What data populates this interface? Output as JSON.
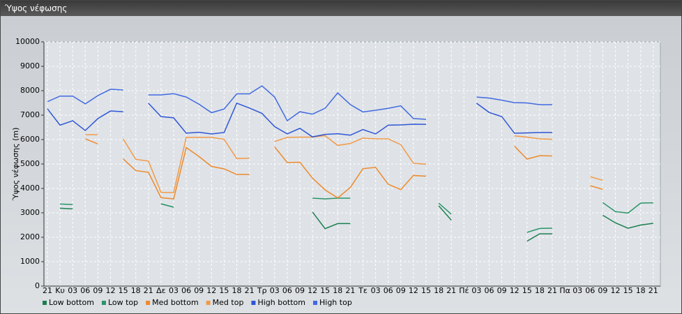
{
  "window": {
    "title": "Ύψος νέφωσης"
  },
  "chart_data": {
    "type": "line",
    "y_label": "Ύψος νέφωσης (m)",
    "categories": [
      "21",
      "Κυ",
      "03",
      "06",
      "09",
      "12",
      "15",
      "18",
      "21",
      "Δε",
      "03",
      "06",
      "09",
      "12",
      "15",
      "18",
      "21",
      "Τρ",
      "03",
      "06",
      "09",
      "12",
      "15",
      "18",
      "21",
      "Τε",
      "03",
      "06",
      "09",
      "12",
      "15",
      "18",
      "21",
      "Πέ",
      "03",
      "06",
      "09",
      "12",
      "15",
      "18",
      "21",
      "Πα",
      "03",
      "06",
      "09",
      "12",
      "15",
      "18",
      "21"
    ],
    "ylim": [
      0,
      10000
    ],
    "yticks": [
      0,
      1000,
      2000,
      3000,
      4000,
      5000,
      6000,
      7000,
      8000,
      9000,
      10000
    ],
    "grid": true,
    "series": [
      {
        "name": "Low bottom",
        "color": "#1b7f4f",
        "values": [
          null,
          3190,
          3160,
          null,
          null,
          null,
          null,
          null,
          null,
          3370,
          3230,
          null,
          null,
          null,
          null,
          null,
          null,
          null,
          null,
          null,
          null,
          3030,
          2350,
          2560,
          2560,
          null,
          null,
          null,
          null,
          null,
          null,
          3290,
          2700,
          null,
          null,
          null,
          null,
          null,
          1840,
          2140,
          2140,
          null,
          null,
          null,
          2900,
          2590,
          2370,
          2500,
          2570
        ]
      },
      {
        "name": "Low top",
        "color": "#2a9468",
        "values": [
          null,
          3360,
          3340,
          null,
          null,
          null,
          null,
          null,
          null,
          3370,
          3230,
          null,
          null,
          null,
          null,
          null,
          null,
          null,
          null,
          null,
          null,
          3600,
          3570,
          3600,
          3600,
          null,
          null,
          null,
          null,
          null,
          null,
          3400,
          2940,
          null,
          null,
          null,
          null,
          null,
          2200,
          2360,
          2370,
          null,
          null,
          null,
          3420,
          3050,
          2990,
          3400,
          3410
        ]
      },
      {
        "name": "Med bottom",
        "color": "#ee8a2c",
        "values": [
          null,
          null,
          null,
          6030,
          5820,
          null,
          5210,
          4730,
          4660,
          3620,
          3570,
          5670,
          5310,
          4900,
          4800,
          4570,
          4570,
          null,
          5700,
          5060,
          5070,
          4420,
          3940,
          3610,
          4040,
          4810,
          4860,
          4170,
          3950,
          4530,
          4500,
          null,
          null,
          null,
          null,
          null,
          null,
          5730,
          5200,
          5340,
          5330,
          null,
          null,
          4110,
          3960,
          null,
          null,
          null,
          null
        ]
      },
      {
        "name": "Med top",
        "color": "#f29a48",
        "values": [
          null,
          null,
          null,
          6200,
          6200,
          null,
          6030,
          5190,
          5120,
          3840,
          3830,
          6090,
          6090,
          6090,
          6010,
          5220,
          5240,
          null,
          5920,
          6090,
          6100,
          6100,
          6160,
          5760,
          5840,
          6060,
          6030,
          6030,
          5790,
          5030,
          4990,
          null,
          null,
          null,
          null,
          null,
          null,
          6150,
          6100,
          6030,
          6010,
          null,
          null,
          4480,
          4330,
          null,
          null,
          null,
          null
        ]
      },
      {
        "name": "High bottom",
        "color": "#2f56d6",
        "values": [
          7260,
          6590,
          6770,
          6370,
          6860,
          7170,
          7140,
          null,
          7490,
          6940,
          6890,
          6260,
          6300,
          6230,
          6290,
          7490,
          7290,
          7070,
          6530,
          6230,
          6460,
          6110,
          6210,
          6240,
          6180,
          6410,
          6230,
          6590,
          6600,
          6630,
          6620,
          null,
          null,
          null,
          7490,
          7110,
          6940,
          6260,
          6270,
          6290,
          6290,
          null,
          null,
          null,
          null,
          null,
          null,
          null,
          null
        ]
      },
      {
        "name": "High top",
        "color": "#4169e1",
        "values": [
          7550,
          7780,
          7780,
          7460,
          7800,
          8060,
          8030,
          null,
          7830,
          7830,
          7880,
          7740,
          7450,
          7100,
          7250,
          7870,
          7870,
          8200,
          7740,
          6770,
          7140,
          7040,
          7280,
          7910,
          7430,
          7130,
          7200,
          7280,
          7380,
          6860,
          6830,
          null,
          null,
          null,
          7740,
          7700,
          7610,
          7510,
          7500,
          7430,
          7430,
          null,
          null,
          null,
          null,
          null,
          null,
          null,
          null
        ]
      }
    ]
  }
}
